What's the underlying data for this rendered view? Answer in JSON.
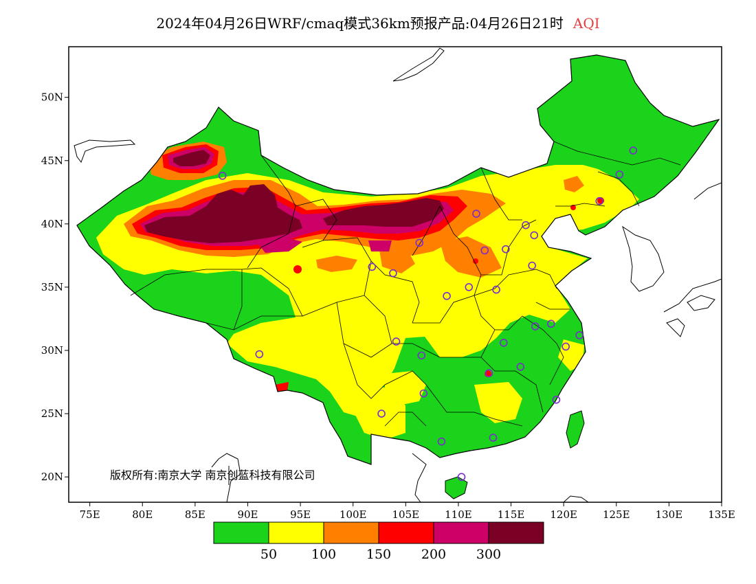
{
  "title": {
    "main": "2024年04月26日WRF/cmaq模式36km预报产品:04月26日21时",
    "variable": "AQI"
  },
  "axes": {
    "lat_ticks": [
      {
        "value": 50,
        "label": "50N"
      },
      {
        "value": 45,
        "label": "45N"
      },
      {
        "value": 40,
        "label": "40N"
      },
      {
        "value": 35,
        "label": "35N"
      },
      {
        "value": 30,
        "label": "30N"
      },
      {
        "value": 25,
        "label": "25N"
      },
      {
        "value": 20,
        "label": "20N"
      }
    ],
    "lon_ticks": [
      {
        "value": 75,
        "label": "75E"
      },
      {
        "value": 80,
        "label": "80E"
      },
      {
        "value": 85,
        "label": "85E"
      },
      {
        "value": 90,
        "label": "90E"
      },
      {
        "value": 95,
        "label": "95E"
      },
      {
        "value": 100,
        "label": "100E"
      },
      {
        "value": 105,
        "label": "105E"
      },
      {
        "value": 110,
        "label": "110E"
      },
      {
        "value": 115,
        "label": "115E"
      },
      {
        "value": 120,
        "label": "120E"
      },
      {
        "value": 125,
        "label": "125E"
      },
      {
        "value": 130,
        "label": "130E"
      },
      {
        "value": 135,
        "label": "135E"
      }
    ],
    "lon_range": [
      73,
      135
    ],
    "lat_range": [
      18,
      54
    ]
  },
  "copyright": "版权所有:南京大学 南京创蓝科技有限公司",
  "legend": {
    "colors": [
      "#1ad31a",
      "#ffff00",
      "#ff8000",
      "#ff0000",
      "#cc0066",
      "#7a0026"
    ],
    "thresholds": [
      "50",
      "100",
      "150",
      "200",
      "300"
    ]
  },
  "colors": {
    "land_base": "#1ad31a",
    "ocean": "#ffffff",
    "boundary": "#000000",
    "station_ring": "#7a2ccf"
  },
  "stations": [
    [
      87.6,
      43.8
    ],
    [
      91.1,
      29.7
    ],
    [
      101.8,
      36.6
    ],
    [
      103.8,
      36.1
    ],
    [
      106.3,
      38.5
    ],
    [
      104.1,
      30.7
    ],
    [
      106.5,
      29.6
    ],
    [
      102.7,
      25.0
    ],
    [
      106.7,
      26.6
    ],
    [
      108.9,
      34.3
    ],
    [
      111.7,
      40.8
    ],
    [
      112.5,
      37.9
    ],
    [
      114.5,
      38.0
    ],
    [
      116.4,
      39.9
    ],
    [
      117.2,
      39.1
    ],
    [
      117.0,
      36.7
    ],
    [
      113.6,
      34.8
    ],
    [
      114.3,
      30.6
    ],
    [
      112.9,
      28.2
    ],
    [
      115.9,
      28.7
    ],
    [
      117.3,
      31.9
    ],
    [
      118.8,
      32.1
    ],
    [
      120.2,
      30.3
    ],
    [
      121.5,
      31.2
    ],
    [
      119.3,
      26.1
    ],
    [
      113.3,
      23.1
    ],
    [
      108.4,
      22.8
    ],
    [
      110.3,
      20.0
    ],
    [
      123.4,
      41.8
    ],
    [
      125.3,
      43.9
    ],
    [
      126.6,
      45.8
    ],
    [
      111.0,
      35.0
    ]
  ]
}
